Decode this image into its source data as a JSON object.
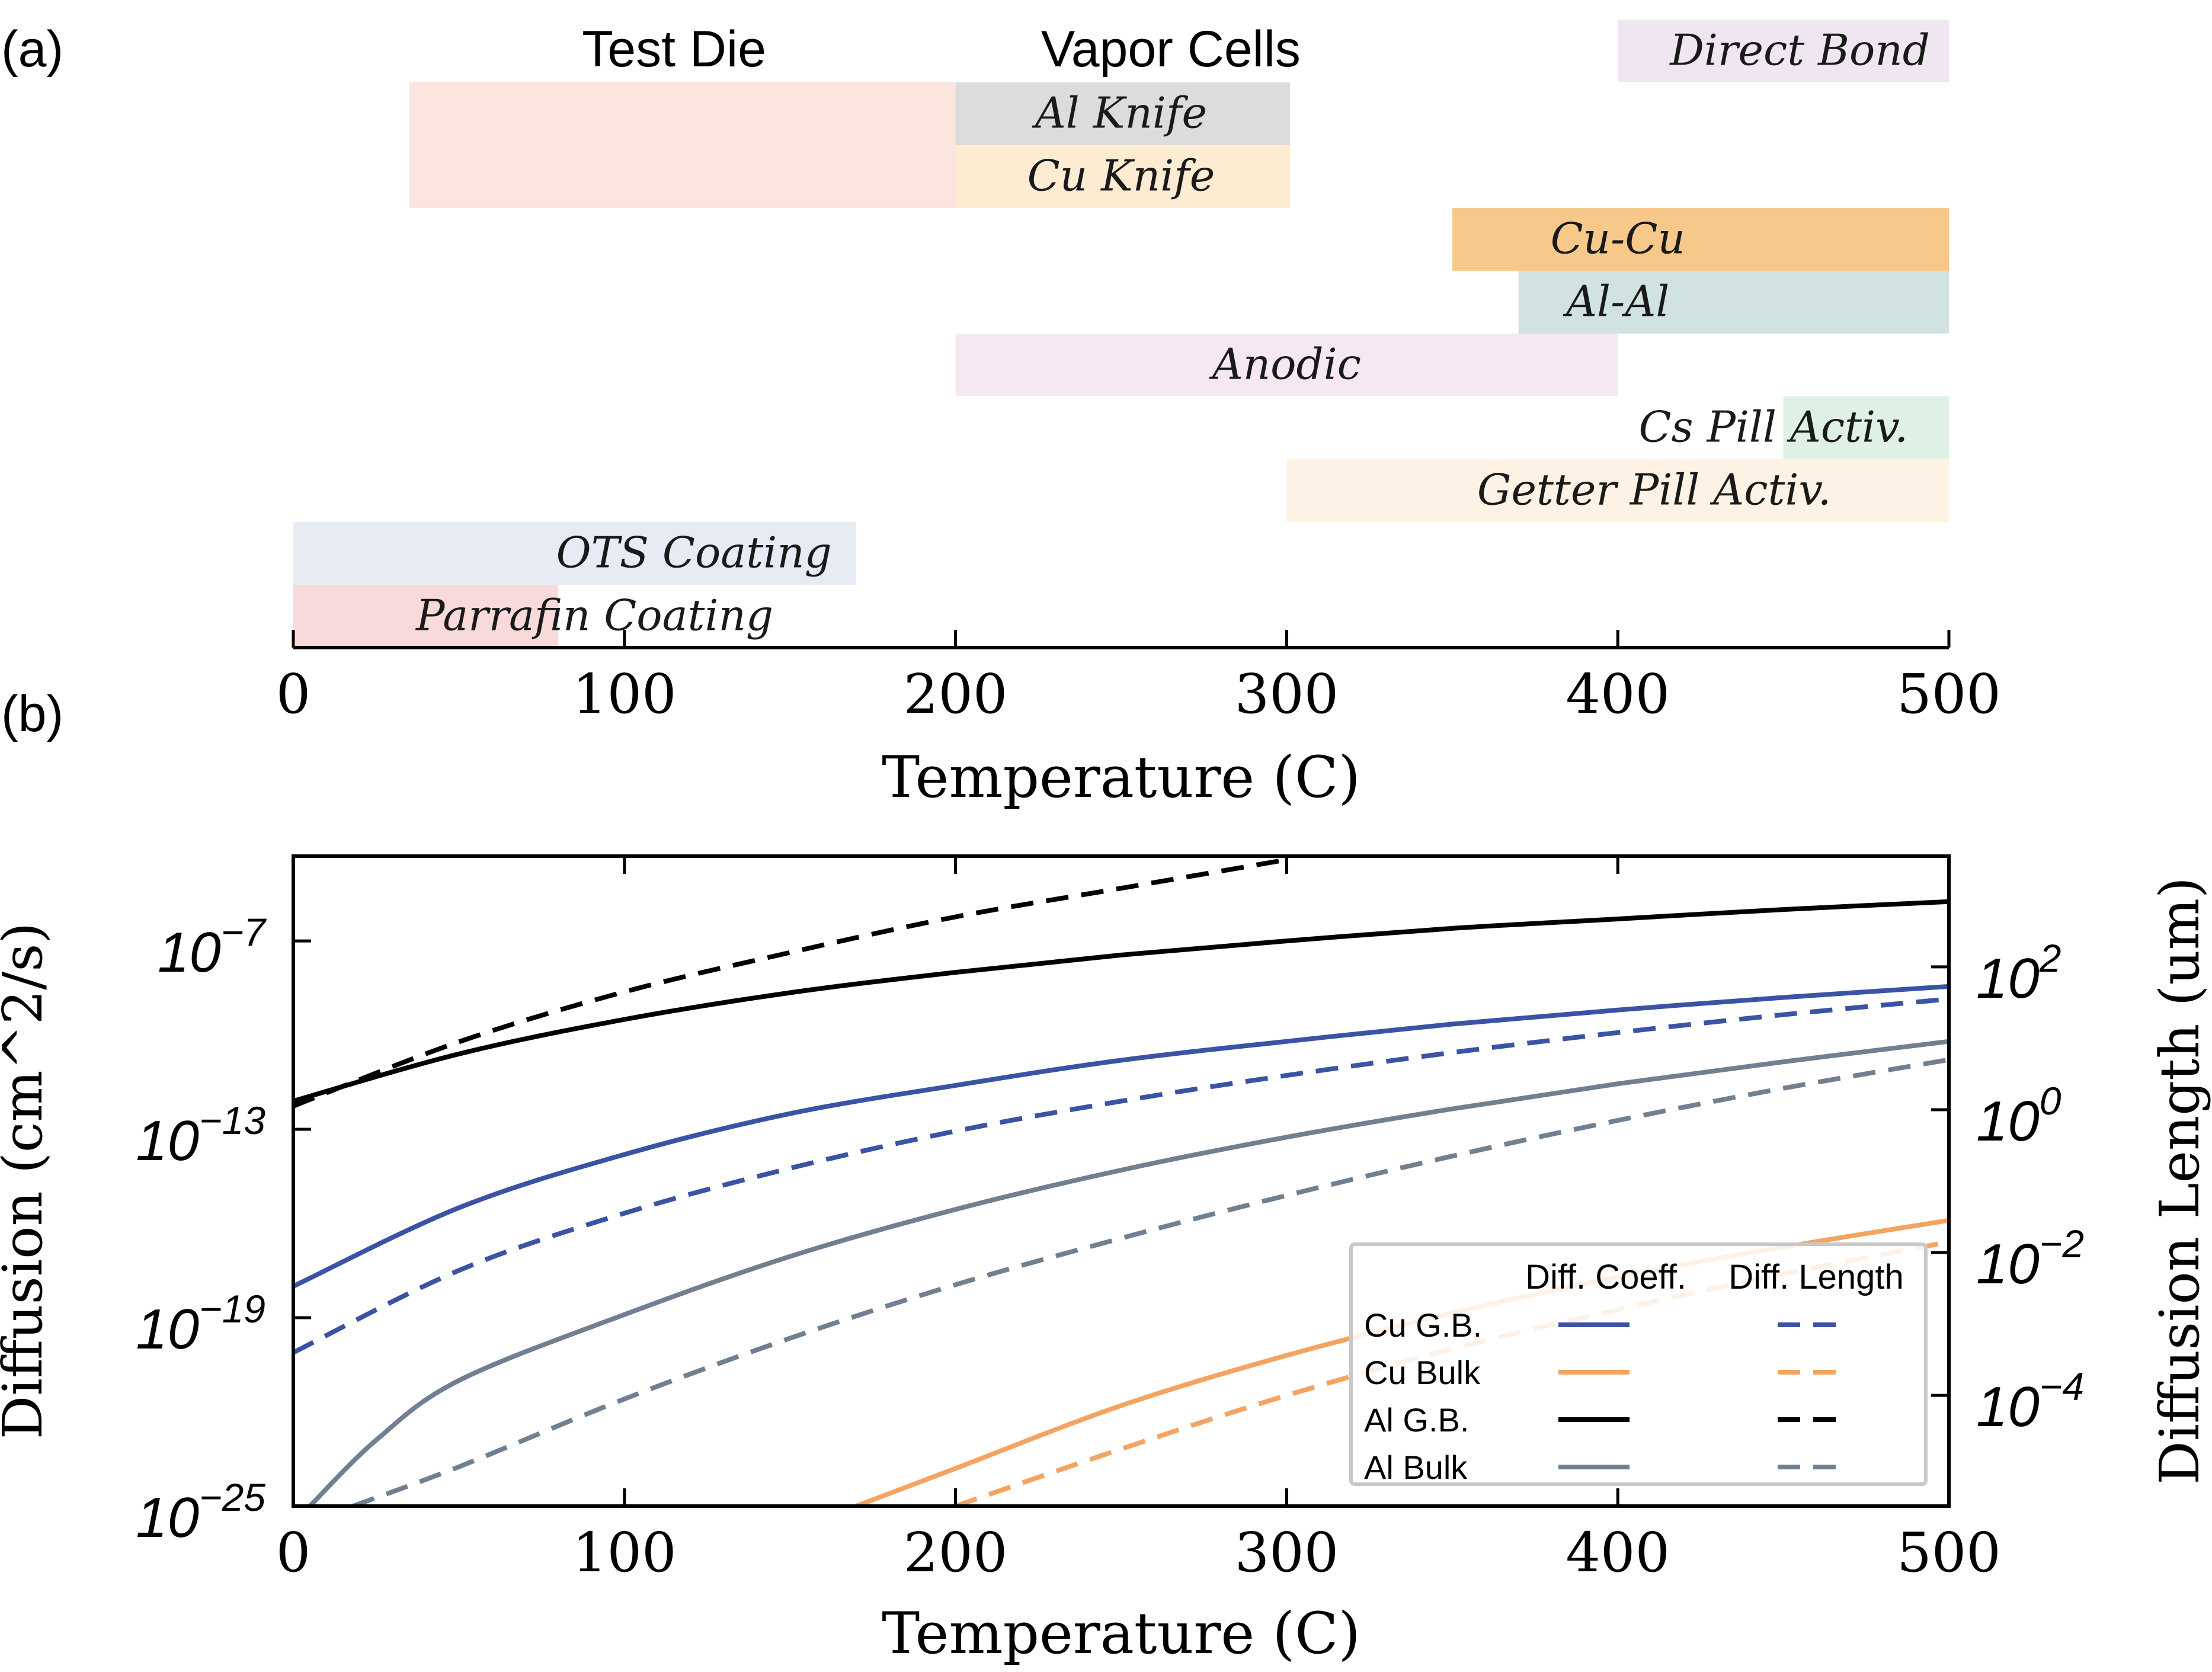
{
  "panel_labels": {
    "a": "(a)",
    "b": "(b)"
  },
  "chart_data": [
    {
      "type": "range-bars",
      "panel": "(a)",
      "xlabel": "Temperature (C)",
      "xlim": [
        0,
        500
      ],
      "xticks": [
        0,
        100,
        200,
        300,
        400,
        500
      ],
      "group_labels": [
        {
          "text": "Test Die",
          "x": 115
        },
        {
          "text": "Vapor Cells",
          "x": 265
        }
      ],
      "bars": [
        {
          "label": "Direct Bond",
          "start": 400,
          "end": 500,
          "row": 0,
          "color": "#f0e6f2",
          "label_x": 455
        },
        {
          "label": "",
          "start": 35,
          "end": 200,
          "row": 1,
          "row_span": 2,
          "color": "#fbe5de",
          "label_x": 0
        },
        {
          "label": "Al Knife",
          "start": 200,
          "end": 301,
          "row": 1,
          "color": "#dcdcdc",
          "label_x": 250
        },
        {
          "label": "Cu Knife",
          "start": 200,
          "end": 301,
          "row": 2,
          "color": "#fdebd2",
          "label_x": 250
        },
        {
          "label": "Cu-Cu",
          "start": 350,
          "end": 500,
          "row": 3,
          "color": "#f6c98a",
          "label_x": 400
        },
        {
          "label": "Al-Al",
          "start": 370,
          "end": 500,
          "row": 4,
          "color": "#d0e3e0",
          "label_x": 400
        },
        {
          "label": "Anodic",
          "start": 200,
          "end": 400,
          "row": 5,
          "color": "#f5e8f1",
          "label_x": 300
        },
        {
          "label": "Cs Pill Activ.",
          "start": 450,
          "end": 500,
          "row": 6,
          "color": "#dff0e6",
          "label_x": 447
        },
        {
          "label": "Getter Pill Activ.",
          "start": 300,
          "end": 500,
          "row": 7,
          "color": "#fdf2e4",
          "label_x": 411
        },
        {
          "label": "OTS Coating",
          "start": 0,
          "end": 170,
          "row": 8,
          "color": "#e7ebf4",
          "label_x": 121
        },
        {
          "label": "Parrafin Coating",
          "start": 0,
          "end": 80,
          "row": 9,
          "color": "#f8dadb",
          "label_x": 91
        }
      ]
    },
    {
      "type": "line",
      "panel": "(b)",
      "xlabel": "Temperature (C)",
      "ylabel": "Diffusion (cm^2/s)",
      "y2label": "Diffusion Length (um)",
      "xlim": [
        0,
        500
      ],
      "xticks": [
        0,
        100,
        200,
        300,
        400,
        500
      ],
      "ylim_log10": [
        -25,
        -4.3
      ],
      "yticks": [
        {
          "base": "10",
          "exp": "−7",
          "value": -7
        },
        {
          "base": "10",
          "exp": "−13",
          "value": -13
        },
        {
          "base": "10",
          "exp": "−19",
          "value": -19
        },
        {
          "base": "10",
          "exp": "−25",
          "value": -25
        }
      ],
      "y2lim_log10": [
        -5.55,
        3.55
      ],
      "y2ticks": [
        {
          "base": "10",
          "exp": "2",
          "value": 2
        },
        {
          "base": "10",
          "exp": "0",
          "value": 0
        },
        {
          "base": "10",
          "exp": "−2",
          "value": -2
        },
        {
          "base": "10",
          "exp": "−4",
          "value": -4
        }
      ],
      "legend": {
        "col_headers": [
          "Diff. Coeff.",
          "Diff. Length"
        ],
        "rows": [
          "Cu G.B.",
          "Cu Bulk",
          "Al G.B.",
          "Al Bulk"
        ],
        "placement": "lower-right"
      },
      "series": [
        {
          "name": "Cu G.B.",
          "kind": "Diff. Coeff.",
          "axis": "left",
          "color": "#3a53a4",
          "dash": false,
          "x": [
            0,
            50,
            100,
            150,
            200,
            250,
            300,
            350,
            400,
            450,
            500
          ],
          "y": [
            -18.0,
            -15.5,
            -13.8,
            -12.5,
            -11.6,
            -10.8,
            -10.2,
            -9.65,
            -9.2,
            -8.8,
            -8.45
          ]
        },
        {
          "name": "Cu Bulk",
          "kind": "Diff. Coeff.",
          "axis": "left",
          "color": "#f4a460",
          "dash": false,
          "x": [
            170,
            200,
            250,
            300,
            350,
            400,
            450,
            500
          ],
          "y": [
            -25.0,
            -23.8,
            -21.8,
            -20.2,
            -18.85,
            -17.7,
            -16.75,
            -15.9
          ]
        },
        {
          "name": "Al G.B.",
          "kind": "Diff. Coeff.",
          "axis": "left",
          "color": "#000000",
          "dash": false,
          "x": [
            0,
            50,
            100,
            150,
            200,
            250,
            300,
            350,
            400,
            450,
            500
          ],
          "y": [
            -12.1,
            -10.6,
            -9.5,
            -8.65,
            -8.0,
            -7.45,
            -7.0,
            -6.6,
            -6.3,
            -6.0,
            -5.75
          ]
        },
        {
          "name": "Al Bulk",
          "kind": "Diff. Coeff.",
          "axis": "left",
          "color": "#708090",
          "dash": false,
          "x": [
            5,
            25,
            50,
            100,
            150,
            200,
            250,
            300,
            350,
            400,
            450,
            500
          ],
          "y": [
            -25.0,
            -22.9,
            -21.0,
            -18.9,
            -17.05,
            -15.55,
            -14.3,
            -13.25,
            -12.35,
            -11.55,
            -10.85,
            -10.2
          ]
        },
        {
          "name": "Cu G.B.",
          "kind": "Diff. Length",
          "axis": "right",
          "color": "#3a53a4",
          "dash": true,
          "x": [
            0,
            50,
            100,
            150,
            200,
            250,
            300,
            350,
            400,
            450,
            500
          ],
          "y": [
            -3.4,
            -2.25,
            -1.45,
            -0.82,
            -0.3,
            0.12,
            0.48,
            0.8,
            1.08,
            1.33,
            1.55
          ]
        },
        {
          "name": "Cu Bulk",
          "kind": "Diff. Length",
          "axis": "right",
          "color": "#f4a460",
          "dash": true,
          "x": [
            200,
            250,
            300,
            350,
            400,
            450,
            500
          ],
          "y": [
            -5.55,
            -4.75,
            -4.0,
            -3.35,
            -2.8,
            -2.3,
            -1.85
          ]
        },
        {
          "name": "Al G.B.",
          "kind": "Diff. Length",
          "axis": "right",
          "color": "#000000",
          "dash": true,
          "x": [
            0,
            50,
            100,
            150,
            200,
            250,
            300
          ],
          "y": [
            0.05,
            0.95,
            1.65,
            2.2,
            2.7,
            3.1,
            3.5
          ]
        },
        {
          "name": "Al Bulk",
          "kind": "Diff. Length",
          "axis": "right",
          "color": "#708090",
          "dash": true,
          "x": [
            18,
            50,
            100,
            150,
            200,
            250,
            300,
            350,
            400,
            450,
            500
          ],
          "y": [
            -5.55,
            -5.0,
            -4.05,
            -3.2,
            -2.45,
            -1.8,
            -1.2,
            -0.65,
            -0.15,
            0.3,
            0.7
          ]
        }
      ]
    }
  ]
}
